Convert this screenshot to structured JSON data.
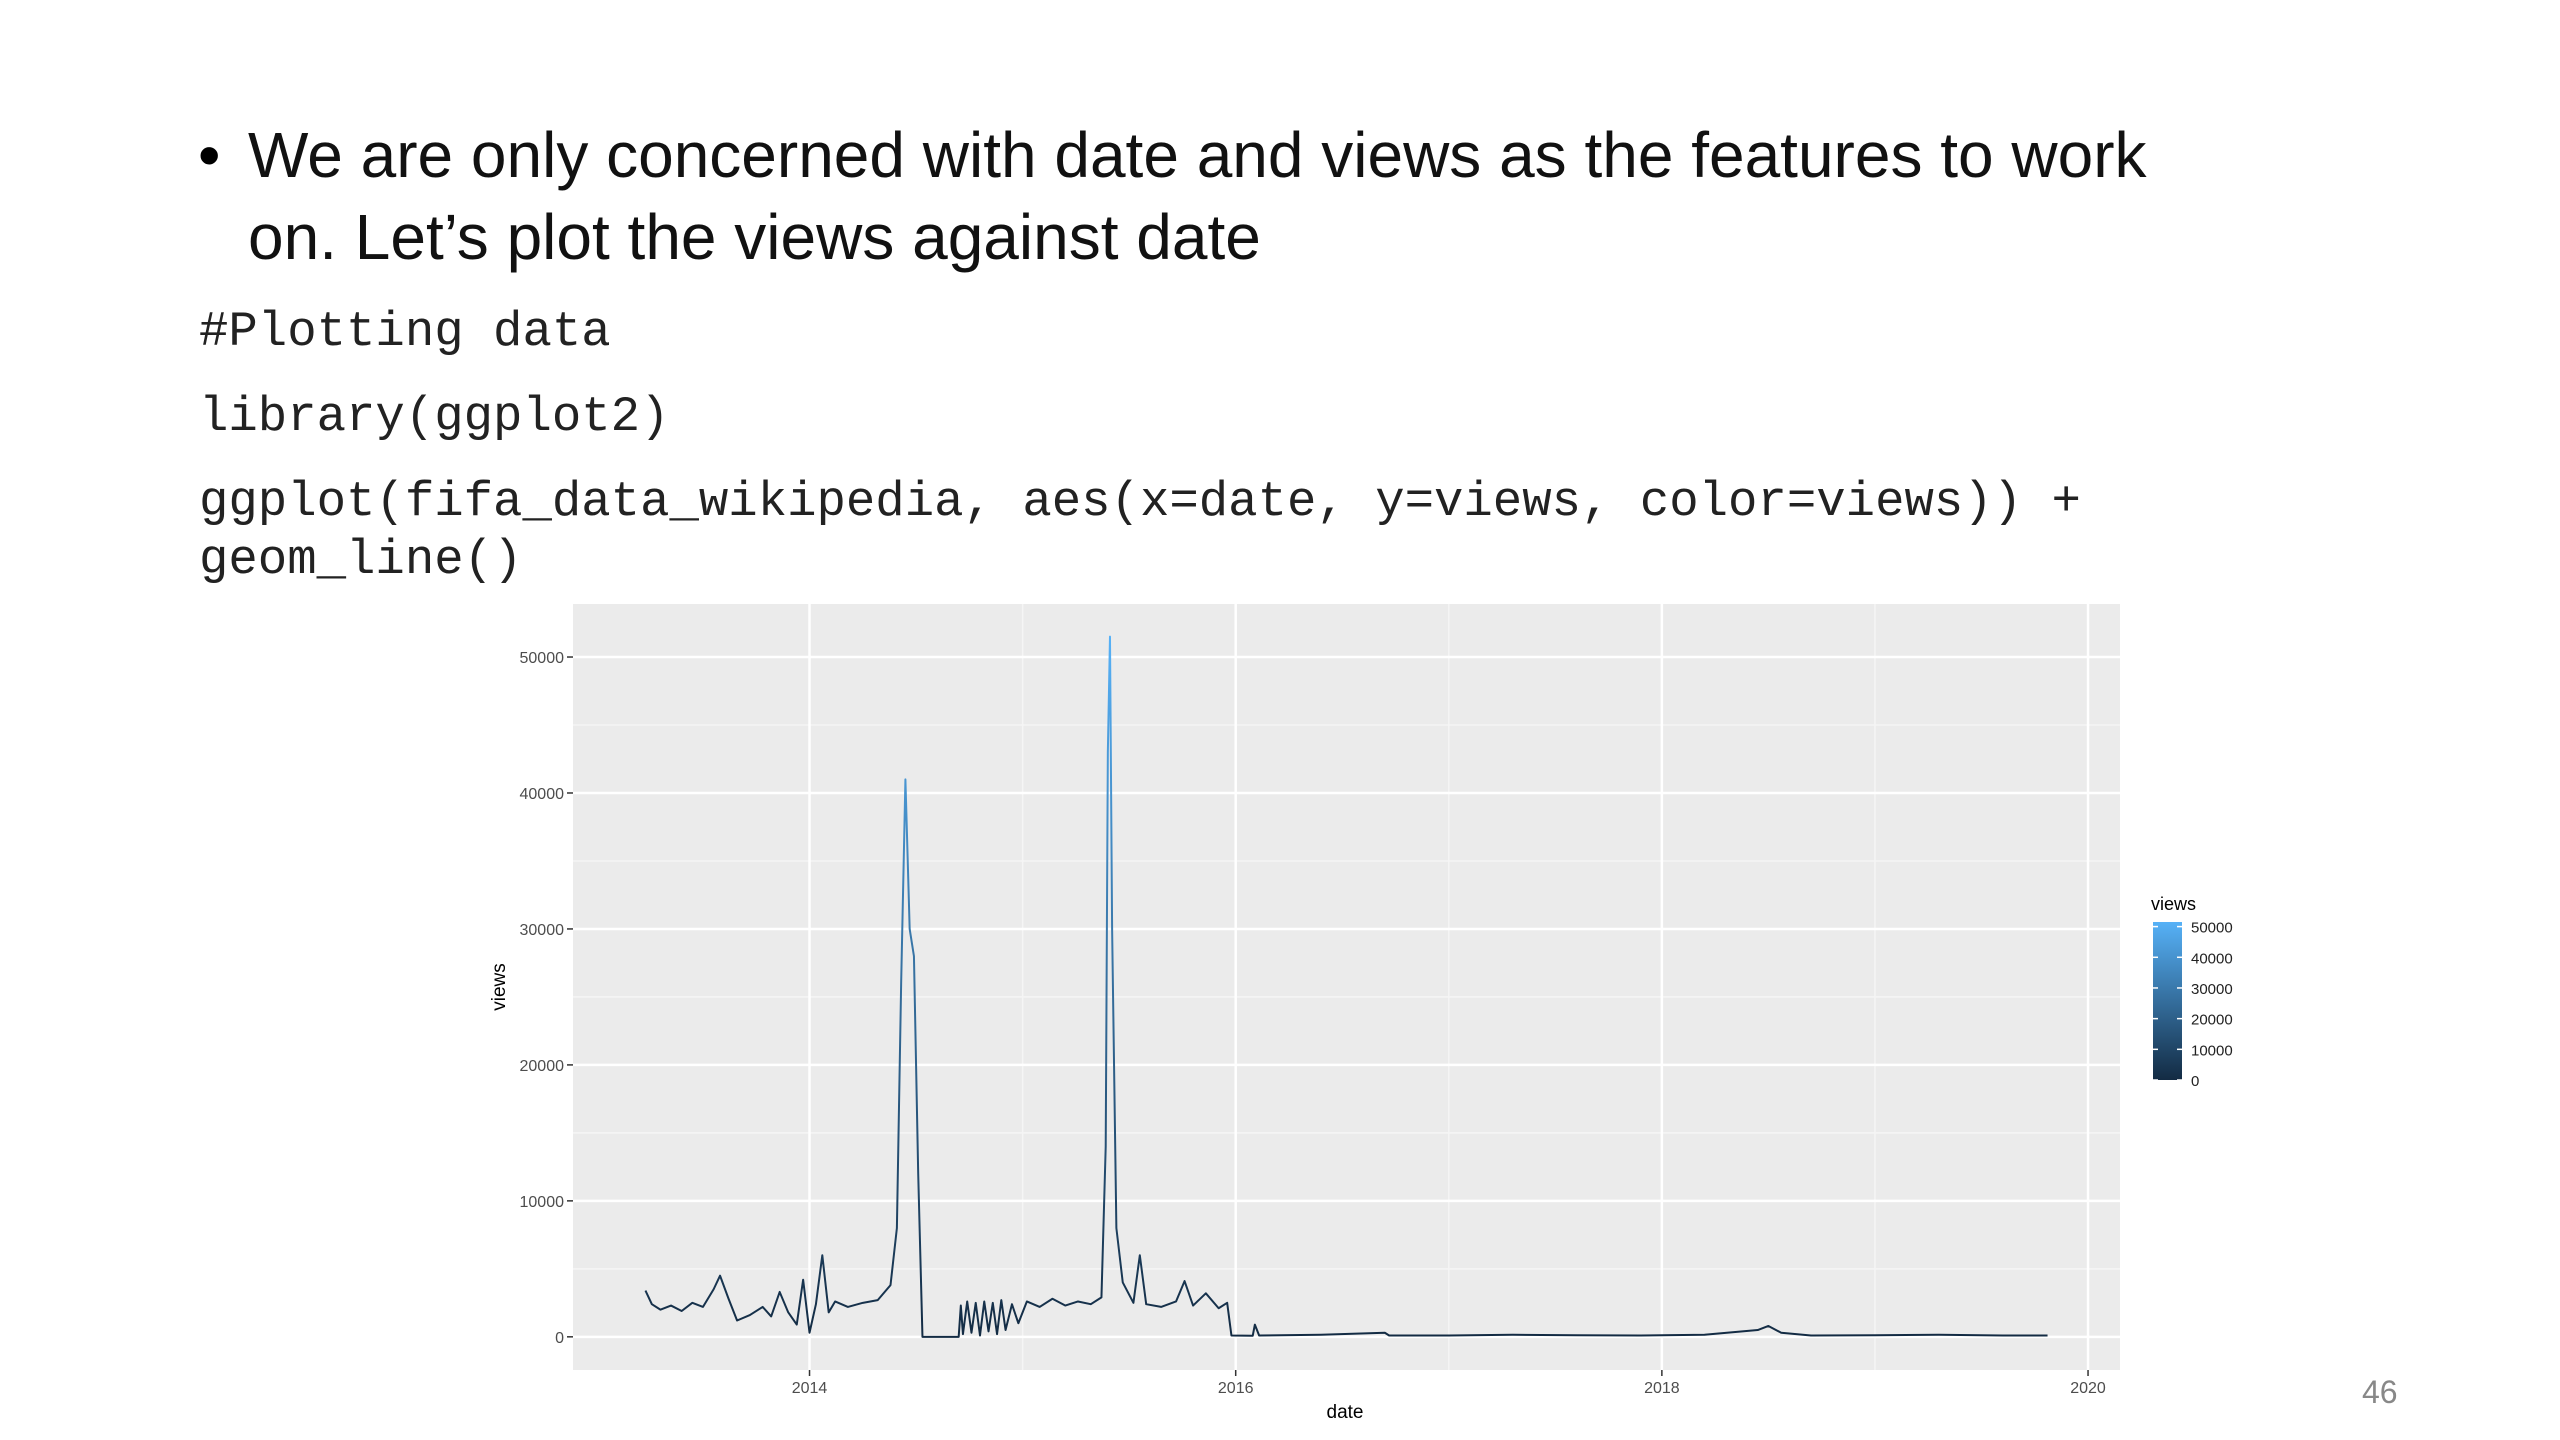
{
  "bullet": [
    "We are only concerned with date and views as the features to work",
    "on. Let’s plot the views against date"
  ],
  "code": [
    "#Plotting data",
    "library(ggplot2)",
    "ggplot(fifa_data_wikipedia, aes(x=date, y=views, color=views)) +",
    "geom_line()"
  ],
  "page_number": "46",
  "chart_data": {
    "type": "line",
    "x_label": "date",
    "y_label": "views",
    "x": [
      2013.23,
      2013.26,
      2013.3,
      2013.35,
      2013.4,
      2013.45,
      2013.5,
      2013.55,
      2013.58,
      2013.62,
      2013.66,
      2013.72,
      2013.78,
      2013.82,
      2013.86,
      2013.9,
      2013.94,
      2013.97,
      2014.0,
      2014.03,
      2014.06,
      2014.09,
      2014.12,
      2014.18,
      2014.25,
      2014.32,
      2014.38,
      2014.41,
      2014.43,
      2014.45,
      2014.47,
      2014.49,
      2014.51,
      2014.53,
      2014.7,
      2014.71,
      2014.72,
      2014.74,
      2014.76,
      2014.78,
      2014.8,
      2014.82,
      2014.84,
      2014.86,
      2014.88,
      2014.9,
      2014.92,
      2014.95,
      2014.98,
      2015.02,
      2015.08,
      2015.14,
      2015.2,
      2015.26,
      2015.32,
      2015.37,
      2015.39,
      2015.4,
      2015.41,
      2015.42,
      2015.44,
      2015.47,
      2015.52,
      2015.55,
      2015.58,
      2015.65,
      2015.72,
      2015.76,
      2015.8,
      2015.86,
      2015.92,
      2015.96,
      2015.98,
      2016.08,
      2016.09,
      2016.11,
      2016.4,
      2016.7,
      2016.72,
      2017.0,
      2017.3,
      2017.6,
      2017.9,
      2018.2,
      2018.45,
      2018.5,
      2018.56,
      2018.7,
      2019.0,
      2019.3,
      2019.6,
      2019.81
    ],
    "values": [
      3400,
      2400,
      2000,
      2300,
      1900,
      2500,
      2200,
      3500,
      4500,
      2800,
      1200,
      1600,
      2200,
      1500,
      3300,
      1800,
      900,
      4200,
      300,
      2400,
      6000,
      1800,
      2600,
      2200,
      2500,
      2700,
      3800,
      8000,
      26000,
      41000,
      30000,
      28000,
      12000,
      0,
      0,
      2300,
      200,
      2600,
      300,
      2500,
      100,
      2600,
      400,
      2500,
      200,
      2700,
      500,
      2400,
      1000,
      2600,
      2200,
      2800,
      2300,
      2600,
      2400,
      2900,
      14000,
      43000,
      51500,
      30000,
      8000,
      4000,
      2500,
      6000,
      2400,
      2200,
      2600,
      4100,
      2300,
      3200,
      2100,
      2500,
      100,
      80,
      900,
      100,
      150,
      300,
      100,
      100,
      150,
      120,
      100,
      150,
      500,
      800,
      300,
      100,
      120,
      150,
      100,
      100
    ],
    "xlim": [
      2012.89,
      2020.15
    ],
    "xticks": [
      2014,
      2016,
      2018,
      2020
    ],
    "ylim": [
      -2440,
      53900
    ],
    "yticks": [
      0,
      10000,
      20000,
      30000,
      40000,
      50000
    ],
    "grid": true,
    "color_scale": {
      "title": "views",
      "low": "#132B43",
      "high": "#56B1F7",
      "limits": [
        0,
        51500
      ],
      "ticks": [
        0,
        10000,
        20000,
        30000,
        40000,
        50000
      ]
    }
  }
}
